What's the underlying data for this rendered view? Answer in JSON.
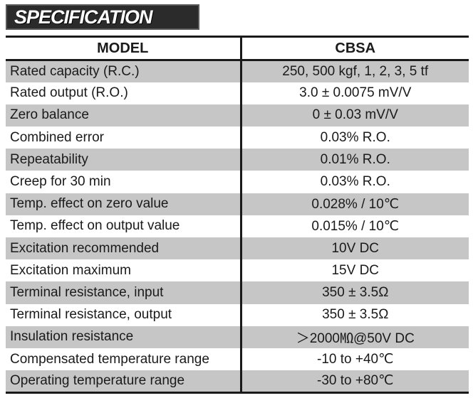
{
  "title": "SPECIFICATION",
  "table": {
    "header": {
      "model_label": "MODEL",
      "model_value": "CBSA"
    },
    "rows": [
      {
        "label": "Rated capacity (R.C.)",
        "value": "250, 500 kgf, 1, 2, 3, 5 tf"
      },
      {
        "label": "Rated output (R.O.)",
        "value": "3.0 ± 0.0075 mV/V"
      },
      {
        "label": "Zero balance",
        "value": "0 ± 0.03 mV/V"
      },
      {
        "label": "Combined error",
        "value": "0.03% R.O."
      },
      {
        "label": "Repeatability",
        "value": "0.01% R.O."
      },
      {
        "label": "Creep for 30 min",
        "value": "0.03% R.O."
      },
      {
        "label": "Temp. effect on zero value",
        "value": "0.028% / 10℃"
      },
      {
        "label": "Temp. effect on output value",
        "value": "0.015% / 10℃"
      },
      {
        "label": "Excitation recommended",
        "value": "10V DC"
      },
      {
        "label": "Excitation maximum",
        "value": "15V DC"
      },
      {
        "label": "Terminal resistance, input",
        "value": "350 ± 3.5Ω"
      },
      {
        "label": "Terminal resistance, output",
        "value": "350 ± 3.5Ω"
      },
      {
        "label": "Insulation resistance",
        "value": "＞2000㏁@50V DC"
      },
      {
        "label": "Compensated temperature range",
        "value": "-10 to +40℃"
      },
      {
        "label": "Operating temperature range",
        "value": "-30 to +80℃"
      }
    ]
  }
}
